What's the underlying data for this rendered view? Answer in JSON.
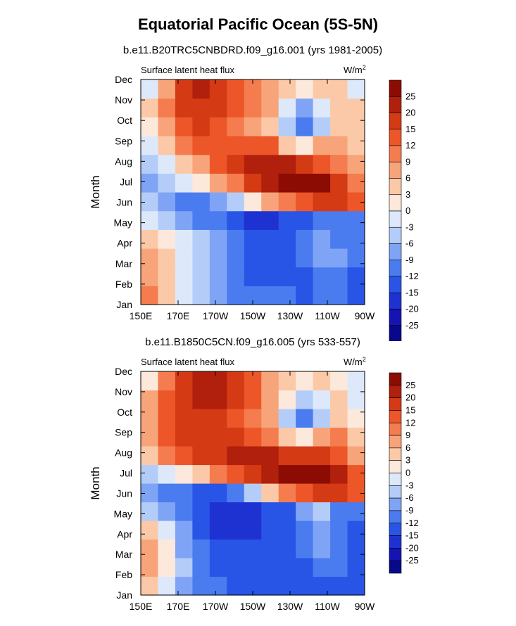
{
  "page": {
    "title": "Equatorial Pacific Ocean (5S-5N)"
  },
  "colors": {
    "scale": [
      "#08088a",
      "#1414b4",
      "#1e32d2",
      "#2855e6",
      "#4a7cf0",
      "#7fa4f5",
      "#b4cdf8",
      "#dde9fb",
      "#fde8dc",
      "#fbc9a8",
      "#f8a47a",
      "#f47c4e",
      "#ec5628",
      "#d43a14",
      "#b0200c",
      "#8c0c04"
    ]
  },
  "chart_data": [
    {
      "type": "heatmap",
      "title": "b.e11.B20TRC5CNBDRD.f09_g16.001 (yrs 1981-2005)",
      "subtitle_left": "Surface latent heat flux",
      "units_prefix": "W/m",
      "units_sup": "2",
      "ylabel": "Month",
      "x_ticks": [
        "150E",
        "170E",
        "170W",
        "150W",
        "130W",
        "110W",
        "90W"
      ],
      "x_values": [
        150,
        170,
        190,
        210,
        230,
        250,
        270
      ],
      "xlim": [
        150,
        270
      ],
      "y_ticks": [
        "Jan",
        "Feb",
        "Mar",
        "Apr",
        "May",
        "Jun",
        "Jul",
        "Aug",
        "Sep",
        "Oct",
        "Nov",
        "Dec"
      ],
      "y_values": [
        1,
        2,
        3,
        4,
        5,
        6,
        7,
        8,
        9,
        10,
        11,
        12
      ],
      "ylim": [
        1,
        12
      ],
      "colorbar_levels": [
        "25",
        "20",
        "15",
        "12",
        "9",
        "6",
        "3",
        "0",
        "-3",
        "-6",
        "-9",
        "-12",
        "-15",
        "-20",
        "-25"
      ],
      "approx_values": [
        [
          9,
          3,
          -3,
          -6,
          -9,
          -12,
          -12,
          -12,
          -12,
          -15,
          -12,
          -12,
          -15
        ],
        [
          6,
          3,
          -3,
          -6,
          -9,
          -12,
          -15,
          -15,
          -15,
          -15,
          -12,
          -12,
          -15
        ],
        [
          6,
          3,
          -3,
          -6,
          -9,
          -12,
          -15,
          -15,
          -15,
          -12,
          -9,
          -9,
          -12
        ],
        [
          3,
          0,
          -3,
          -6,
          -9,
          -12,
          -15,
          -15,
          -15,
          -12,
          -9,
          -12,
          -12
        ],
        [
          -3,
          -6,
          -9,
          -12,
          -12,
          -15,
          -20,
          -20,
          -15,
          -15,
          -12,
          -12,
          -12
        ],
        [
          -6,
          -9,
          -12,
          -12,
          -9,
          -6,
          0,
          6,
          9,
          12,
          15,
          15,
          12
        ],
        [
          -9,
          -6,
          -3,
          0,
          6,
          9,
          15,
          20,
          25,
          25,
          25,
          15,
          9
        ],
        [
          -6,
          -3,
          3,
          6,
          12,
          15,
          20,
          20,
          20,
          15,
          12,
          9,
          6
        ],
        [
          -3,
          3,
          9,
          12,
          12,
          12,
          12,
          12,
          3,
          0,
          6,
          6,
          3
        ],
        [
          0,
          6,
          12,
          15,
          12,
          9,
          6,
          3,
          -6,
          -12,
          -6,
          3,
          3
        ],
        [
          3,
          9,
          15,
          15,
          15,
          12,
          9,
          6,
          -3,
          -9,
          -3,
          3,
          3
        ],
        [
          -3,
          6,
          15,
          20,
          15,
          12,
          9,
          6,
          3,
          0,
          3,
          3,
          -3
        ]
      ]
    },
    {
      "type": "heatmap",
      "title": "b.e11.B1850C5CN.f09_g16.005 (yrs 533-557)",
      "subtitle_left": "Surface latent heat flux",
      "units_prefix": "W/m",
      "units_sup": "2",
      "ylabel": "Month",
      "x_ticks": [
        "150E",
        "170E",
        "170W",
        "150W",
        "130W",
        "110W",
        "90W"
      ],
      "x_values": [
        150,
        170,
        190,
        210,
        230,
        250,
        270
      ],
      "xlim": [
        150,
        270
      ],
      "y_ticks": [
        "Jan",
        "Feb",
        "Mar",
        "Apr",
        "May",
        "Jun",
        "Jul",
        "Aug",
        "Sep",
        "Oct",
        "Nov",
        "Dec"
      ],
      "y_values": [
        1,
        2,
        3,
        4,
        5,
        6,
        7,
        8,
        9,
        10,
        11,
        12
      ],
      "ylim": [
        1,
        12
      ],
      "colorbar_levels": [
        "25",
        "20",
        "15",
        "12",
        "9",
        "6",
        "3",
        "0",
        "-3",
        "-6",
        "-9",
        "-12",
        "-15",
        "-20",
        "-25"
      ],
      "approx_values": [
        [
          3,
          -3,
          -9,
          -12,
          -12,
          -15,
          -15,
          -15,
          -15,
          -15,
          -15,
          -15,
          -15
        ],
        [
          6,
          0,
          -6,
          -12,
          -15,
          -15,
          -15,
          -15,
          -15,
          -15,
          -12,
          -12,
          -15
        ],
        [
          6,
          0,
          -9,
          -12,
          -15,
          -15,
          -15,
          -15,
          -15,
          -12,
          -9,
          -12,
          -15
        ],
        [
          3,
          -3,
          -9,
          -15,
          -20,
          -20,
          -20,
          -15,
          -15,
          -12,
          -9,
          -12,
          -15
        ],
        [
          -6,
          -9,
          -12,
          -15,
          -20,
          -20,
          -20,
          -15,
          -15,
          -9,
          -6,
          -12,
          -12
        ],
        [
          -9,
          -12,
          -12,
          -15,
          -15,
          -12,
          -6,
          3,
          9,
          12,
          15,
          15,
          12
        ],
        [
          -6,
          -3,
          0,
          3,
          9,
          12,
          15,
          20,
          25,
          25,
          25,
          20,
          12
        ],
        [
          3,
          9,
          12,
          15,
          15,
          20,
          20,
          20,
          15,
          15,
          15,
          12,
          6
        ],
        [
          6,
          12,
          15,
          15,
          15,
          15,
          12,
          9,
          3,
          0,
          6,
          9,
          3
        ],
        [
          6,
          12,
          15,
          15,
          15,
          12,
          9,
          6,
          -6,
          -12,
          -6,
          3,
          0
        ],
        [
          6,
          12,
          15,
          20,
          20,
          15,
          12,
          6,
          0,
          -6,
          -3,
          3,
          -3
        ],
        [
          0,
          9,
          15,
          20,
          20,
          15,
          12,
          6,
          3,
          0,
          3,
          0,
          -3
        ]
      ]
    }
  ]
}
